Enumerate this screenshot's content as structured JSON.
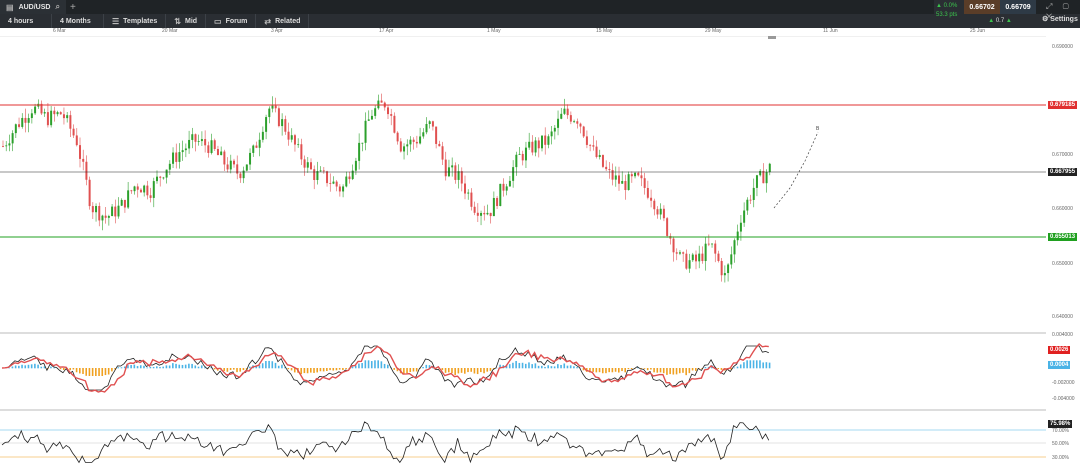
{
  "tab": {
    "symbol": "AUD/USD"
  },
  "toolbar": {
    "timeframe": "4 hours",
    "range": "4 Months",
    "templates": "Templates",
    "mid": "Mid",
    "forum": "Forum",
    "related": "Related",
    "settings": "Settings"
  },
  "quote": {
    "change_pct": "0.0%",
    "change_pips": "53.3 pts",
    "sell": "0.66702",
    "buy": "0.66709",
    "spread": "0.7"
  },
  "date_axis": [
    "6 Mar",
    "20 Mar",
    "3 Apr",
    "17 Apr",
    "1 May",
    "15 May",
    "29 May",
    "11 Jun",
    "25 Jun"
  ],
  "price_axis": [
    "0.690000",
    "0.680000",
    "0.670000",
    "0.660000",
    "0.650000",
    "0.640000"
  ],
  "levels": {
    "resistance": "0.679185",
    "current": "0.667955",
    "support": "0.655013",
    "projection_marker": "B"
  },
  "macd": {
    "axis": [
      "0.004000",
      "0.000000",
      "-0.002000",
      "-0.004000"
    ],
    "value1": "0.0026",
    "value2": "0.0004"
  },
  "rsi": {
    "axis": [
      "70.00%",
      "50.00%",
      "30.00%"
    ],
    "value": "75.98%"
  },
  "colors": {
    "up": "#2ca02c",
    "down": "#e05050",
    "resistance": "#e03030",
    "support": "#20a020",
    "macd_pos": "#4ab3e6",
    "macd_neg": "#f0a020"
  },
  "chart_data": {
    "type": "candlestick",
    "symbol": "AUD/USD",
    "timeframe": "4 hours",
    "ylim": [
      0.638,
      0.692
    ],
    "x_ticks": [
      "6 Mar",
      "20 Mar",
      "3 Apr",
      "17 Apr",
      "1 May",
      "15 May",
      "29 May",
      "11 Jun",
      "25 Jun"
    ],
    "close_path": [
      0.672,
      0.676,
      0.679,
      0.677,
      0.678,
      0.673,
      0.661,
      0.659,
      0.661,
      0.665,
      0.664,
      0.668,
      0.671,
      0.673,
      0.672,
      0.669,
      0.667,
      0.671,
      0.679,
      0.676,
      0.671,
      0.667,
      0.666,
      0.664,
      0.671,
      0.678,
      0.68,
      0.672,
      0.673,
      0.676,
      0.668,
      0.666,
      0.661,
      0.66,
      0.665,
      0.67,
      0.672,
      0.673,
      0.678,
      0.677,
      0.671,
      0.667,
      0.665,
      0.666,
      0.663,
      0.657,
      0.651,
      0.651,
      0.654,
      0.648,
      0.659,
      0.665,
      0.668
    ],
    "horizontal_lines": [
      0.679185,
      0.667955,
      0.655013
    ]
  }
}
